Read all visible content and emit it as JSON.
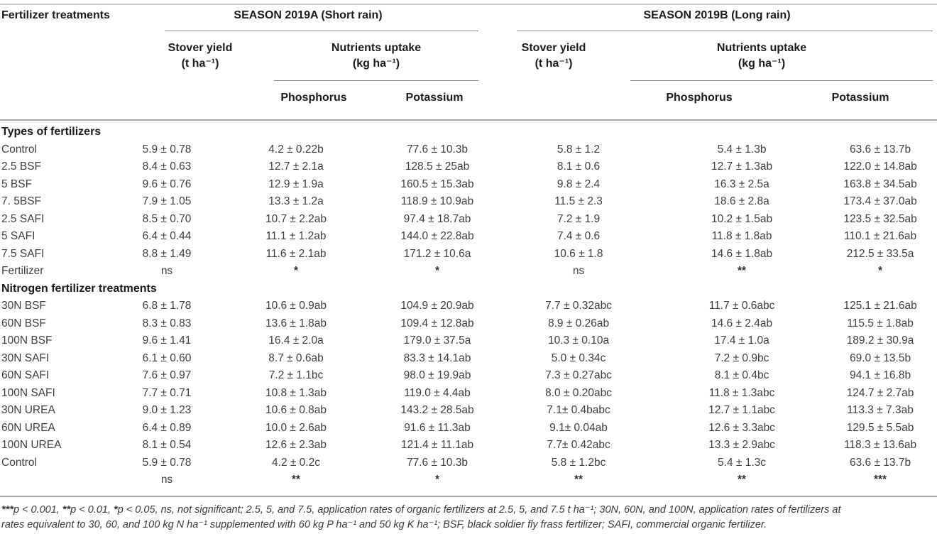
{
  "header": {
    "col0": "Fertilizer treatments",
    "season_a": {
      "title": "SEASON 2019A (Short rain)",
      "stover": "Stover yield",
      "stover_unit": "(t ha⁻¹)",
      "nutrients": "Nutrients uptake",
      "nutrients_unit": "(kg ha⁻¹)",
      "phosphorus": "Phosphorus",
      "potassium": "Potassium"
    },
    "season_b": {
      "title": "SEASON 2019B (Long rain)",
      "stover": "Stover yield",
      "stover_unit": "(t ha⁻¹)",
      "nutrients": "Nutrients uptake",
      "nutrients_unit": "(kg ha⁻¹)",
      "phosphorus": "Phosphorus",
      "potassium": "Potassium"
    }
  },
  "table": {
    "rows": [
      {
        "type": "section",
        "label": "Types of fertilizers"
      },
      {
        "type": "data",
        "label": "Control",
        "cells": [
          "5.9 ± 0.78",
          "4.2 ± 0.22b",
          "77.6 ± 10.3b",
          "5.8 ± 1.2",
          "5.4 ± 1.3b",
          "63.6 ± 13.7b"
        ]
      },
      {
        "type": "data",
        "label": "2.5 BSF",
        "cells": [
          "8.4 ± 0.63",
          "12.7 ± 2.1a",
          "128.5 ± 25ab",
          "8.1 ± 0.6",
          "12.7 ± 1.3ab",
          "122.0 ± 14.8ab"
        ]
      },
      {
        "type": "data",
        "label": "5 BSF",
        "cells": [
          "9.6 ± 0.76",
          "12.9 ± 1.9a",
          "160.5 ± 15.3ab",
          "9.8 ± 2.4",
          "16.3 ± 2.5a",
          "163.8 ± 34.5ab"
        ]
      },
      {
        "type": "data",
        "label": "7. 5BSF",
        "cells": [
          "7.9 ± 1.05",
          "13.3 ± 1.2a",
          "118.9 ± 10.9ab",
          "11.5 ± 2.3",
          "18.6 ± 2.8a",
          "173.4 ± 37.0ab"
        ]
      },
      {
        "type": "data",
        "label": "2.5 SAFI",
        "cells": [
          "8.5 ± 0.70",
          "10.7 ± 2.2ab",
          "97.4 ± 18.7ab",
          "7.2 ± 1.9",
          "10.2 ± 1.5ab",
          "123.5 ± 32.5ab"
        ]
      },
      {
        "type": "data",
        "label": "5 SAFI",
        "cells": [
          "6.4 ± 0.44",
          "11.1 ± 1.2ab",
          "144.0 ± 22.8ab",
          "7.4 ± 0.6",
          "11.8 ± 1.8ab",
          "110.1 ± 21.6ab"
        ]
      },
      {
        "type": "data",
        "label": "7.5 SAFI",
        "cells": [
          "8.8 ± 1.49",
          "11.6 ± 2.1ab",
          "171.2 ± 10.6a",
          "10.6 ± 1.8",
          "14.6 ± 1.8ab",
          "212.5 ± 33.5a"
        ]
      },
      {
        "type": "data",
        "label": "Fertilizer",
        "cells": [
          "ns",
          "*",
          "*",
          "ns",
          "**",
          "*"
        ]
      },
      {
        "type": "section",
        "label": "Nitrogen fertilizer treatments"
      },
      {
        "type": "data",
        "label": "30N BSF",
        "cells": [
          "6.8 ± 1.78",
          "10.6 ± 0.9ab",
          "104.9 ± 20.9ab",
          "7.7 ± 0.32abc",
          "11.7 ± 0.6abc",
          "125.1 ± 21.6ab"
        ]
      },
      {
        "type": "data",
        "label": "60N BSF",
        "cells": [
          "8.3 ± 0.83",
          "13.6 ± 1.8ab",
          "109.4 ± 12.8ab",
          "8.9 ± 0.26ab",
          "14.6 ± 2.4ab",
          "115.5 ± 1.8ab"
        ]
      },
      {
        "type": "data",
        "label": "100N BSF",
        "cells": [
          "9.6 ± 1.41",
          "16.4 ± 2.0a",
          "179.0 ± 37.5a",
          "10.3 ± 0.10a",
          "17.4 ± 1.0a",
          "189.2 ± 30.9a"
        ]
      },
      {
        "type": "data",
        "label": "30N SAFI",
        "cells": [
          "6.1 ± 0.60",
          "8.7 ± 0.6ab",
          "83.3 ± 14.1ab",
          "5.0 ± 0.34c",
          "7.2 ± 0.9bc",
          "69.0 ± 13.5b"
        ]
      },
      {
        "type": "data",
        "label": "60N SAFI",
        "cells": [
          "7.6 ± 0.97",
          "7.2 ± 1.1bc",
          "98.0 ± 19.9ab",
          "7.3 ± 0.27abc",
          "8.1 ± 0.4bc",
          "94.1 ± 16.8b"
        ]
      },
      {
        "type": "data",
        "label": "100N SAFI",
        "cells": [
          "7.7 ± 0.71",
          "10.8 ± 1.3ab",
          "119.0 ± 4.4ab",
          "8.0 ± 0.20abc",
          "11.8 ± 1.3abc",
          "124.7 ± 2.7ab"
        ]
      },
      {
        "type": "data",
        "label": "30N UREA",
        "cells": [
          "9.0 ± 1.23",
          "10.6 ± 0.8ab",
          "143.2 ± 28.5ab",
          "7.1± 0.4babc",
          "12.7 ± 1.1abc",
          "113.3 ± 7.3ab"
        ]
      },
      {
        "type": "data",
        "label": "60N UREA",
        "cells": [
          "6.4 ± 0.89",
          "10.0 ± 2.6ab",
          "91.6 ± 11.3ab",
          "9.1± 0.04ab",
          "12.6 ± 3.3abc",
          "129.5 ± 5.5ab"
        ]
      },
      {
        "type": "data",
        "label": "100N UREA",
        "cells": [
          "8.1 ± 0.54",
          "12.6 ± 2.3ab",
          "121.4 ± 11.1ab",
          "7.7± 0.42abc",
          "13.3 ± 2.9abc",
          "118.3 ± 13.6ab"
        ]
      },
      {
        "type": "data",
        "label": "Control",
        "cells": [
          "5.9 ± 0.78",
          "4.2 ± 0.2c",
          "77.6 ± 10.3b",
          "5.8 ± 1.2bc",
          "5.4 ± 1.3c",
          "63.6 ± 13.7b"
        ]
      },
      {
        "type": "data",
        "label": "",
        "cells": [
          "ns",
          "**",
          "*",
          "**",
          "**",
          "***"
        ]
      }
    ]
  },
  "footnote": {
    "sig3": "***",
    "sig3_text": "p < 0.001, ",
    "sig2": "**",
    "sig2_text": "p < 0.01, ",
    "sig1": "*",
    "sig1_text": "p < 0.05, ns, not significant; 2.5, 5, and 7.5, application rates of organic fertilizers at 2.5, 5, and 7.5 t ha⁻¹; 30N, 60N, and 100N, application rates of fertilizers at",
    "line2": "rates equivalent to 30, 60, and 100 kg N ha⁻¹ supplemented with 60 kg P ha⁻¹ and 50 kg K ha⁻¹; BSF, black soldier fly frass fertilizer; SAFI, commercial organic fertilizer."
  },
  "colors": {
    "text": "#3f3f3f",
    "heading": "#1c1c1c",
    "rule_light": "#c9c9c9",
    "rule": "#a6a6a6"
  }
}
